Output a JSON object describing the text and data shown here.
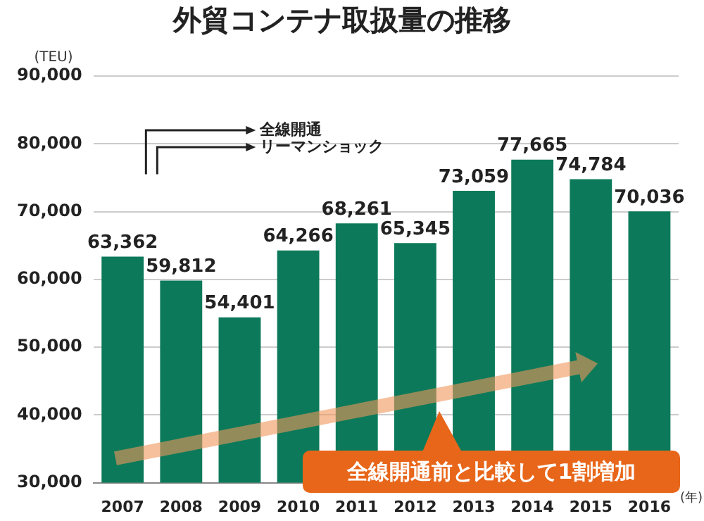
{
  "chart_data": {
    "type": "bar",
    "title": "外貿コンテナ取扱量の推移",
    "ylabel": "(TEU)",
    "xlabel": "(年)",
    "categories": [
      "2007",
      "2008",
      "2009",
      "2010",
      "2011",
      "2012",
      "2013",
      "2014",
      "2015",
      "2016"
    ],
    "values": [
      63362,
      59812,
      54401,
      64266,
      68261,
      65345,
      73059,
      77665,
      74784,
      70036
    ],
    "value_labels": [
      "63,362",
      "59,812",
      "54,401",
      "64,266",
      "68,261",
      "65,345",
      "73,059",
      "77,665",
      "74,784",
      "70,036"
    ],
    "color": "#0c7a5a",
    "ylim": [
      30000,
      90000
    ],
    "yticks": [
      {
        "value": 30000,
        "label": "30,000"
      },
      {
        "value": 40000,
        "label": "40,000"
      },
      {
        "value": 50000,
        "label": "50,000"
      },
      {
        "value": 60000,
        "label": "60,000"
      },
      {
        "value": 70000,
        "label": "70,000"
      },
      {
        "value": 80000,
        "label": "80,000"
      },
      {
        "value": 90000,
        "label": "90,000"
      }
    ],
    "grid": "y",
    "legend": false,
    "annotations": [
      "全線開通",
      "リーマンショック",
      "全線開通前と比較して1割増加"
    ]
  }
}
